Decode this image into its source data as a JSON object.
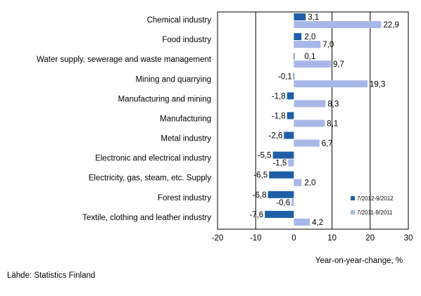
{
  "chart_data": {
    "type": "bar",
    "orientation": "horizontal",
    "categories": [
      "Chemical industry",
      "Food industry",
      "Water supply, sewerage and waste management",
      "Mining and quarrying",
      "Manufacturing and mining",
      "Manufacturing",
      "Metal industry",
      "Electronic and electrical industry",
      "Electricity, gas, steam, etc. Supply",
      "Forest industry",
      "Textile, clothing and leather industry"
    ],
    "series": [
      {
        "name": "7/2012-9/2012",
        "color": "#1f5fa8",
        "values": [
          3.1,
          2.0,
          0.1,
          -0.1,
          -1.8,
          -1.8,
          -2.6,
          -5.5,
          -6.5,
          -6.8,
          -7.6
        ],
        "labels": [
          "3,1",
          "2,0",
          "0,1",
          "-0,1",
          "-1,8",
          "-1,8",
          "-2,6",
          "-5,5",
          "-6,5",
          "-6,8",
          "-7,6"
        ]
      },
      {
        "name": "7/2011-9/2011",
        "color": "#a7b8e8",
        "values": [
          22.9,
          7.0,
          9.7,
          19.3,
          8.3,
          8.1,
          6.7,
          -1.5,
          2.0,
          -0.6,
          4.2
        ],
        "labels": [
          "22,9",
          "7,0",
          "9,7",
          "19,3",
          "8,3",
          "8,1",
          "6,7",
          "-1,5",
          "2,0",
          "-0,6",
          "4,2"
        ]
      }
    ],
    "xlim": [
      -20,
      30
    ],
    "xticks": [
      -20,
      -10,
      0,
      10,
      20,
      30
    ],
    "xlabel": "Year-on-year-change, %",
    "gridlines": [
      -10,
      10,
      20
    ],
    "legend_position": "bottom-right inside plot"
  },
  "source": "Lähde: Statistics Finland"
}
